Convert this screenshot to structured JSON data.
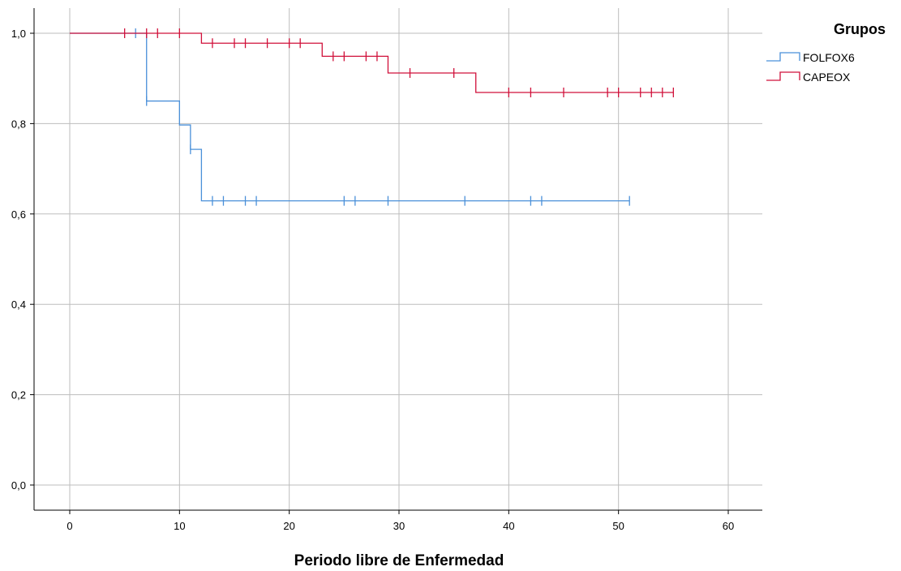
{
  "chart_data": {
    "type": "line",
    "subtype": "kaplan-meier-step",
    "title": "",
    "xlabel": "Periodo libre de Enfermedad",
    "ylabel": "",
    "xlim": [
      -3,
      63
    ],
    "ylim": [
      -0.05,
      1.05
    ],
    "xticks": [
      0,
      10,
      20,
      30,
      40,
      50,
      60
    ],
    "xtick_labels": [
      "0",
      "10",
      "20",
      "30",
      "40",
      "50",
      "60"
    ],
    "yticks": [
      0.0,
      0.2,
      0.4,
      0.6,
      0.8,
      1.0
    ],
    "ytick_labels": [
      "0,0",
      "0,2",
      "0,4",
      "0,6",
      "0,8",
      "1,0"
    ],
    "grid": true,
    "legend": {
      "title": "Grupos",
      "position": "top-right, outside plot"
    },
    "series": [
      {
        "name": "FOLFOX6",
        "color": "#4a90d9",
        "steps": [
          [
            0,
            1.0
          ],
          [
            7,
            0.85
          ],
          [
            10,
            0.797
          ],
          [
            11,
            0.743
          ],
          [
            12,
            0.629
          ],
          [
            51,
            0.629
          ]
        ],
        "censored": [
          6,
          7,
          11,
          13,
          14,
          16,
          17,
          25,
          26,
          29,
          36,
          42,
          43,
          51
        ]
      },
      {
        "name": "CAPEOX",
        "color": "#d0103a",
        "steps": [
          [
            0,
            1.0
          ],
          [
            12,
            0.978
          ],
          [
            23,
            0.949
          ],
          [
            29,
            0.912
          ],
          [
            37,
            0.869
          ],
          [
            55,
            0.869
          ]
        ],
        "censored": [
          5,
          7,
          8,
          10,
          13,
          15,
          16,
          18,
          20,
          21,
          24,
          25,
          27,
          28,
          31,
          35,
          40,
          42,
          45,
          49,
          50,
          52,
          53,
          54,
          55
        ]
      }
    ]
  }
}
